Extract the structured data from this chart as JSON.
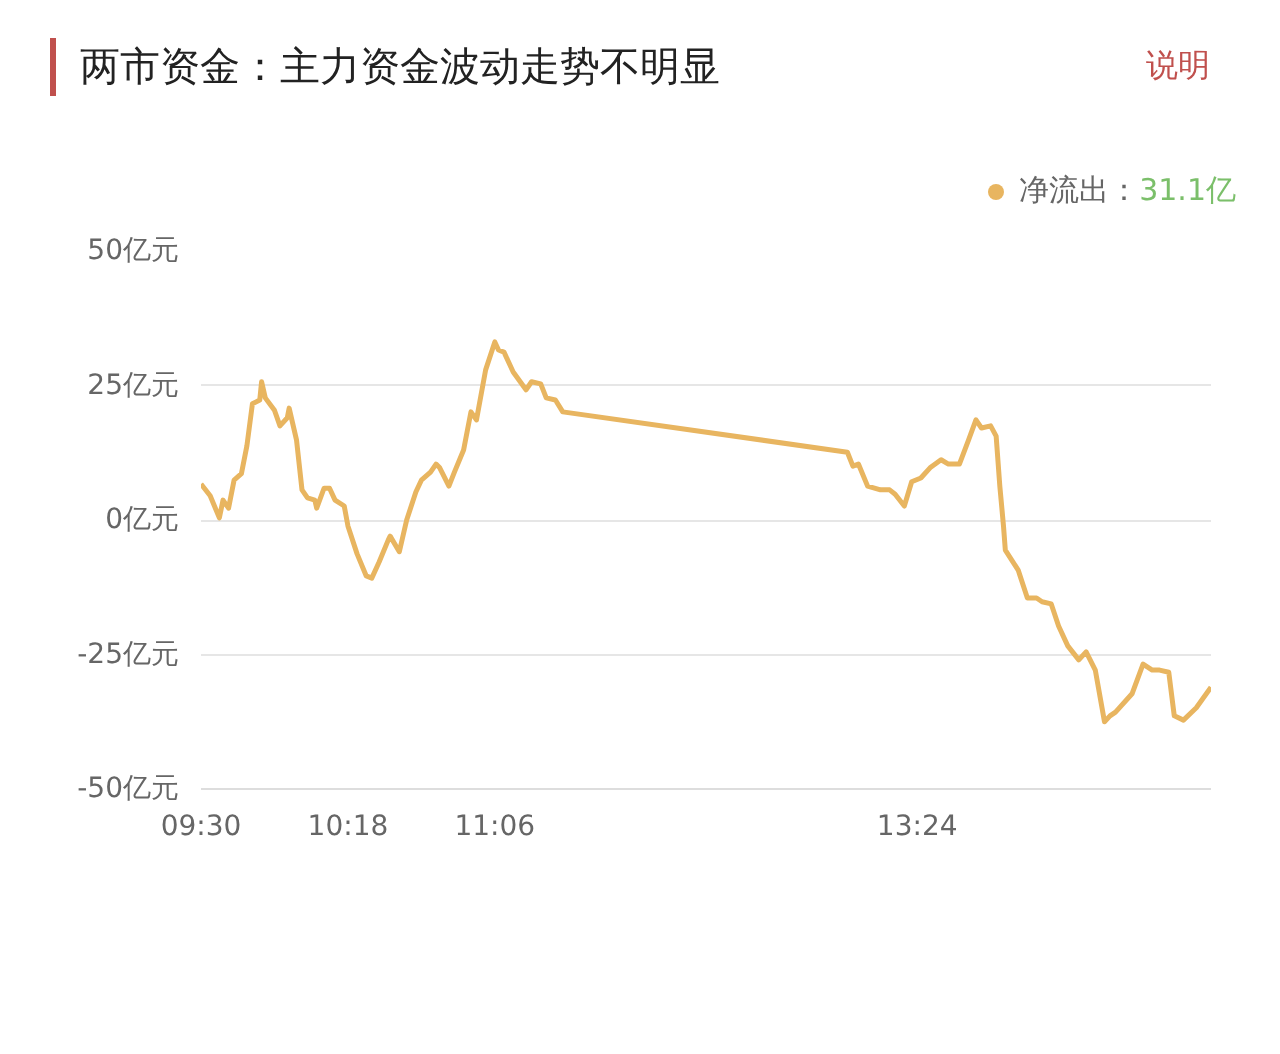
{
  "chart_data": {
    "type": "line",
    "title": "两市资金：主力资金波动走势不明显",
    "annotations": [
      "说明",
      "31.1亿"
    ],
    "x": [
      9.5,
      9.55,
      9.6,
      9.62,
      9.65,
      9.68,
      9.72,
      9.75,
      9.78,
      9.82,
      9.83,
      9.85,
      9.9,
      9.93,
      9.97,
      9.98,
      10.02,
      10.05,
      10.08,
      10.12,
      10.13,
      10.17,
      10.2,
      10.23,
      10.28,
      10.3,
      10.35,
      10.4,
      10.43,
      10.47,
      10.52,
      10.53,
      10.58,
      10.62,
      10.67,
      10.7,
      10.75,
      10.78,
      10.8,
      10.85,
      10.88,
      10.93,
      10.97,
      11.0,
      11.05,
      11.1,
      11.12,
      11.15,
      11.2,
      11.27,
      11.3,
      11.35,
      11.38,
      11.43,
      11.47,
      13.02,
      13.05,
      13.08,
      13.13,
      13.2,
      13.25,
      13.28,
      13.33,
      13.37,
      13.42,
      13.47,
      13.53,
      13.57,
      13.63,
      13.68,
      13.72,
      13.75,
      13.8,
      13.83,
      13.85,
      13.87,
      13.88,
      13.95,
      14.0,
      14.05,
      14.08,
      14.13,
      14.17,
      14.22,
      14.28,
      14.32,
      14.37,
      14.42,
      14.45,
      14.48,
      14.57,
      14.63,
      14.68,
      14.72,
      14.77,
      14.8,
      14.85,
      14.92,
      15.0
    ],
    "series": [
      {
        "name": "净流出：",
        "color": "#e8b560",
        "values": [
          6.7,
          4.5,
          0.4,
          3.7,
          2.2,
          7.4,
          8.6,
          13.8,
          21.6,
          22.3,
          25.7,
          22.7,
          20.4,
          17.5,
          19.0,
          20.8,
          14.9,
          5.6,
          4.1,
          3.7,
          2.2,
          5.9,
          5.9,
          3.7,
          2.6,
          -1.1,
          -6.3,
          -10.4,
          -10.8,
          -7.8,
          -3.7,
          -3.0,
          -5.9,
          0,
          5.2,
          7.4,
          8.9,
          10.4,
          9.7,
          6.3,
          8.9,
          13.0,
          20.1,
          18.6,
          27.9,
          33.1,
          31.6,
          31.2,
          27.5,
          24.2,
          25.7,
          25.3,
          22.7,
          22.3,
          20.1,
          12.6,
          10.0,
          10.4,
          6.3,
          5.6,
          5.6,
          4.8,
          2.6,
          7.1,
          7.8,
          9.7,
          11.2,
          10.4,
          10.4,
          14.9,
          18.6,
          17.1,
          17.5,
          15.6,
          6.3,
          -1.1,
          -5.6,
          -9.3,
          -14.5,
          -14.5,
          -15.2,
          -15.6,
          -19.7,
          -23.4,
          -26.0,
          -24.5,
          -27.9,
          -37.5,
          -36.4,
          -35.7,
          -32.3,
          -26.8,
          -27.9,
          -27.9,
          -28.3,
          -36.4,
          -37.2,
          -34.9,
          -31.1
        ]
      }
    ],
    "xlim": [
      9.5,
      15
    ],
    "xticks": [
      {
        "value": 9.5,
        "label": "09:30"
      },
      {
        "value": 10.3,
        "label": "10:18"
      },
      {
        "value": 11.1,
        "label": "11:06"
      },
      {
        "value": 13.4,
        "label": "13:24"
      }
    ],
    "ylim": [
      -50,
      50
    ],
    "yticks": [
      {
        "value": 50,
        "label": "50亿元"
      },
      {
        "value": 25,
        "label": "25亿元"
      },
      {
        "value": 0,
        "label": "0亿元"
      },
      {
        "value": -25,
        "label": "-25亿元"
      },
      {
        "value": -50,
        "label": "-50亿元"
      }
    ],
    "grid": "y",
    "legend": "top right",
    "marker": "none",
    "line_style": "solid"
  }
}
